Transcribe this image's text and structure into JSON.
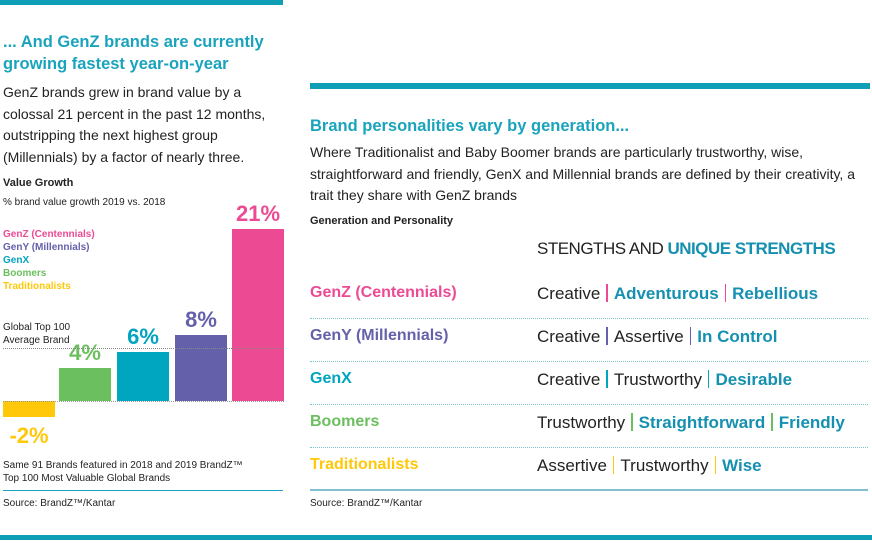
{
  "left": {
    "heading": "... And GenZ brands are currently growing fastest year-on-year",
    "body": "GenZ brands grew in brand value by a colossal 21 percent in the past 12 months, outstripping the next highest group (Millennials) by a factor of nearly three.",
    "footnote_line1": "Same 91 Brands featured in 2018 and 2019 BrandZ™",
    "footnote_line2": "Top 100 Most Valuable Global Brands",
    "source": "Source: BrandZ™/Kantar"
  },
  "chart_data": {
    "type": "bar",
    "title": "Value Growth",
    "subtitle": "% brand value growth 2019 vs. 2018",
    "categories": [
      "Traditionalists",
      "Boomers",
      "GenX",
      "GenY (Millennials)",
      "GenZ (Centennials)"
    ],
    "values": [
      -2,
      4,
      6,
      8,
      21
    ],
    "labels": [
      "-2%",
      "4%",
      "6%",
      "8%",
      "21%"
    ],
    "colors": [
      "#ffc80a",
      "#6cbf5f",
      "#00a5c0",
      "#6460aa",
      "#ec4b94"
    ],
    "legend": [
      "GenZ (Centennials)",
      "GenY (Millennials)",
      "GenX",
      "Boomers",
      "Traditionalists"
    ],
    "legend_colors": [
      "#ec4b94",
      "#6460aa",
      "#00a5c0",
      "#6cbf5f",
      "#ffc80a"
    ],
    "reference_line": {
      "label_line1": "Global Top 100",
      "label_line2": "Average Brand",
      "value": 6.5
    },
    "ylim": [
      -2,
      21
    ]
  },
  "right": {
    "heading": "Brand personalities vary by generation...",
    "body": "Where Traditionalist and Baby Boomer brands are particularly trustworthy, wise, straightforward and friendly, GenX and Millennial brands are defined by their creativity, a trait they share with GenZ brands",
    "table_title": "Generation and Personality",
    "header_plain": "STENGTHS AND",
    "header_unique": "UNIQUE STRENGTHS",
    "rows": [
      {
        "gen": "GenZ (Centennials)",
        "color": "#ec4b94",
        "t1": "Creative",
        "t2": "Adventurous",
        "t3": "Rebellious",
        "u2": true
      },
      {
        "gen": "GenY (Millennials)",
        "color": "#6460aa",
        "t1": "Creative",
        "t2": "Assertive",
        "t3": "In Control",
        "u2": false
      },
      {
        "gen": "GenX",
        "color": "#00a5c0",
        "t1": "Creative",
        "t2": "Trustworthy",
        "t3": "Desirable",
        "u2": false
      },
      {
        "gen": "Boomers",
        "color": "#6cbf5f",
        "t1": "Trustworthy",
        "t2": "Straightforward",
        "t3": "Friendly",
        "u2": true
      },
      {
        "gen": "Traditionalists",
        "color": "#ffc80a",
        "t1": "Assertive",
        "t2": "Trustworthy",
        "t3": "Wise",
        "u2": false
      }
    ],
    "source": "Source: BrandZ™/Kantar"
  }
}
